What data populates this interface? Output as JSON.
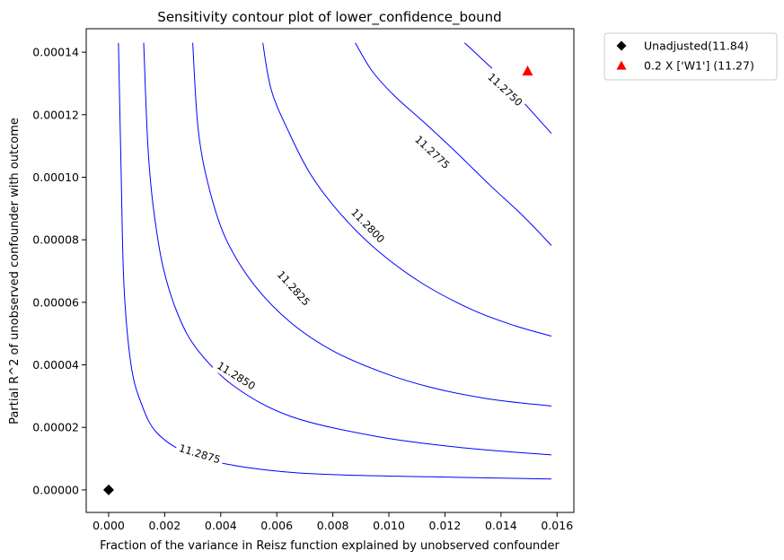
{
  "chart_data": {
    "type": "contour",
    "title": "Sensitivity contour plot of lower_confidence_bound",
    "xlabel": "Fraction of the variance in Reisz function explained by unobserved confounder",
    "ylabel": "Partial R^2 of unobserved confounder with outcome",
    "xlim": [
      -0.0008,
      0.0166
    ],
    "ylim": [
      -7.2e-06,
      0.0001475
    ],
    "x_ticks": [
      0.0,
      0.002,
      0.004,
      0.006,
      0.008,
      0.01,
      0.012,
      0.014,
      0.016
    ],
    "x_tick_labels": [
      "0.000",
      "0.002",
      "0.004",
      "0.006",
      "0.008",
      "0.010",
      "0.012",
      "0.014",
      "0.016"
    ],
    "y_ticks": [
      0.0,
      2e-05,
      4e-05,
      6e-05,
      8e-05,
      0.0001,
      0.00012,
      0.00014
    ],
    "y_tick_labels": [
      "0.00000",
      "0.00002",
      "0.00004",
      "0.00006",
      "0.00008",
      "0.00010",
      "0.00012",
      "0.00014"
    ],
    "grid": false,
    "contour_color": "#0000ff",
    "contours": [
      {
        "level": 11.2875,
        "label": "11.2875",
        "points": [
          [
            0.00035,
            0.000143
          ],
          [
            0.00045,
            0.0001
          ],
          [
            0.00055,
            6.5e-05
          ],
          [
            0.0008,
            4e-05
          ],
          [
            0.00115,
            2.8e-05
          ],
          [
            0.0017,
            1.85e-05
          ],
          [
            0.0028,
            1.18e-05
          ],
          [
            0.0045,
            7.8e-06
          ],
          [
            0.0072,
            5.2e-06
          ],
          [
            0.0115,
            4.2e-06
          ],
          [
            0.0158,
            3.5e-06
          ]
        ],
        "label_position": [
          0.00325,
          1.15e-05
        ],
        "label_rotation": 17
      },
      {
        "level": 11.285,
        "label": "11.2850",
        "points": [
          [
            0.00125,
            0.000143
          ],
          [
            0.0014,
            0.00011
          ],
          [
            0.0016,
            9e-05
          ],
          [
            0.00195,
            7.1e-05
          ],
          [
            0.0025,
            5.55e-05
          ],
          [
            0.0032,
            4.45e-05
          ],
          [
            0.0045,
            3.3e-05
          ],
          [
            0.0065,
            2.35e-05
          ],
          [
            0.0095,
            1.72e-05
          ],
          [
            0.0125,
            1.36e-05
          ],
          [
            0.0158,
            1.12e-05
          ]
        ],
        "label_position": [
          0.00455,
          3.65e-05
        ],
        "label_rotation": 32
      },
      {
        "level": 11.2825,
        "label": "11.2825",
        "points": [
          [
            0.003,
            0.000143
          ],
          [
            0.0032,
            0.000115
          ],
          [
            0.0036,
            9.6e-05
          ],
          [
            0.0042,
            8e-05
          ],
          [
            0.0052,
            6.55e-05
          ],
          [
            0.0065,
            5.35e-05
          ],
          [
            0.008,
            4.45e-05
          ],
          [
            0.0098,
            3.75e-05
          ],
          [
            0.0115,
            3.28e-05
          ],
          [
            0.0135,
            2.92e-05
          ],
          [
            0.0158,
            2.68e-05
          ]
        ],
        "label_position": [
          0.0066,
          6.45e-05
        ],
        "label_rotation": 48
      },
      {
        "level": 11.28,
        "label": "11.2800",
        "points": [
          [
            0.0055,
            0.000143
          ],
          [
            0.0058,
            0.000128
          ],
          [
            0.0064,
            0.000115
          ],
          [
            0.0072,
            0.000101
          ],
          [
            0.0083,
            8.8e-05
          ],
          [
            0.0096,
            7.65e-05
          ],
          [
            0.0112,
            6.6e-05
          ],
          [
            0.013,
            5.75e-05
          ],
          [
            0.0145,
            5.25e-05
          ],
          [
            0.0158,
            4.92e-05
          ]
        ],
        "label_position": [
          0.00925,
          8.45e-05
        ],
        "label_rotation": 46
      },
      {
        "level": 11.2775,
        "label": "11.2775",
        "points": [
          [
            0.0088,
            0.000143
          ],
          [
            0.0094,
            0.000134
          ],
          [
            0.0102,
            0.000126
          ],
          [
            0.0112,
            0.000118
          ],
          [
            0.0124,
            0.000108
          ],
          [
            0.0136,
            9.75e-05
          ],
          [
            0.0148,
            8.75e-05
          ],
          [
            0.0158,
            7.82e-05
          ]
        ],
        "label_position": [
          0.01155,
          0.000108
        ],
        "label_rotation": 43
      },
      {
        "level": 11.275,
        "label": "11.2750",
        "points": [
          [
            0.0127,
            0.000143
          ],
          [
            0.0133,
            0.000138
          ],
          [
            0.014,
            0.000132
          ],
          [
            0.0148,
            0.000124
          ],
          [
            0.0158,
            0.000114
          ]
        ],
        "label_position": [
          0.01415,
          0.000128
        ],
        "label_rotation": 43
      }
    ],
    "markers": [
      {
        "name": "Unadjusted(11.84)",
        "x": 0.0,
        "y": 0.0,
        "shape": "diamond",
        "color": "#000000"
      },
      {
        "name": "0.2 X ['W1'] (11.27)",
        "x": 0.01495,
        "y": 0.000134,
        "shape": "triangle",
        "color": "#ff0000"
      }
    ],
    "legend_position": "outside-top-right"
  }
}
